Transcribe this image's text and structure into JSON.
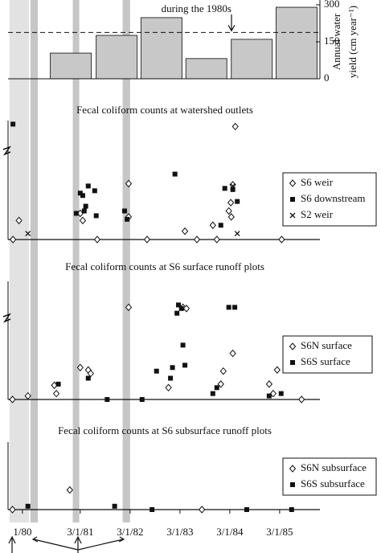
{
  "chart_data": [
    {
      "type": "bar",
      "annotation": "during the 1980s",
      "y_label": [
        "Annual water",
        "yield (cm year⁻¹)"
      ],
      "x": [
        1980.97,
        1981.89,
        1982.79,
        1983.69,
        1984.6,
        1985.5
      ],
      "values": [
        104,
        176,
        248,
        82,
        160,
        290
      ],
      "color": "#c8c8c8",
      "mean_line": 188,
      "ylim": [
        0,
        300
      ],
      "yticks": [
        0,
        150,
        300
      ]
    },
    {
      "type": "scatter",
      "title": "Fecal coliform counts at watershed outlets",
      "ylim": [
        0,
        100
      ],
      "series": [
        {
          "name": "S6 weir",
          "marker": "diamond",
          "x": [
            1979.81,
            1979.93,
            1981.16,
            1981.21,
            1982.13,
            1982.13,
            1983.26,
            1983.82,
            1983.9,
            1984.27,
            1984.22,
            1984.18,
            1984.14,
            1984.19,
            1981.5,
            1982.5,
            1983.5,
            1985.2
          ],
          "values": [
            0,
            16,
            22,
            16,
            47,
            19,
            7,
            12,
            0,
            95,
            46,
            31,
            24,
            19,
            0,
            0,
            0,
            0
          ]
        },
        {
          "name": "S6 downstream",
          "marker": "square",
          "x": [
            1979.81,
            1981.16,
            1981.21,
            1981.32,
            1981.45,
            1981.27,
            1981.08,
            1981.48,
            1981.24,
            1982.05,
            1982.1,
            1983.06,
            1984.06,
            1984.22,
            1983.98,
            1984.31
          ],
          "values": [
            97,
            39,
            37,
            45,
            41,
            28,
            22,
            20,
            24,
            24,
            17,
            55,
            43,
            42,
            12,
            32
          ]
        },
        {
          "name": "S2 weir",
          "marker": "x",
          "x": [
            1980.11,
            1984.22,
            1984.31
          ],
          "values": [
            5,
            45,
            5
          ]
        }
      ]
    },
    {
      "type": "scatter",
      "title": "Fecal coliform counts at S6 surface runoff plots",
      "ylim": [
        0,
        100
      ],
      "series": [
        {
          "name": "S6N surface",
          "marker": "diamond",
          "x": [
            1982.13,
            1981.16,
            1981.32,
            1981.37,
            1980.64,
            1980.68,
            1980.11,
            1983.22,
            1983.29,
            1984.22,
            1983.98,
            1984.03,
            1985.11,
            1984.95,
            1985.03,
            1982.93,
            1979.8,
            1985.6
          ],
          "values": [
            78,
            27,
            25,
            22,
            12,
            5,
            3,
            78,
            77,
            39,
            13,
            24,
            25,
            13,
            5,
            10,
            0,
            0
          ]
        },
        {
          "name": "S6S surface",
          "marker": "square",
          "x": [
            1983.13,
            1983.1,
            1983.19,
            1984.14,
            1984.26,
            1983.22,
            1983.26,
            1983.01,
            1982.97,
            1982.69,
            1981.32,
            1980.72,
            1983.9,
            1983.82,
            1984.95,
            1985.19,
            1981.7,
            1982.4
          ],
          "values": [
            80,
            73,
            77,
            78,
            78,
            46,
            29,
            27,
            18,
            24,
            18,
            13,
            10,
            5,
            3,
            5,
            0,
            0
          ]
        }
      ]
    },
    {
      "type": "scatter",
      "title": "Fecal coliform counts at S6 subsurface runoff plots",
      "ylim": [
        0,
        100
      ],
      "series": [
        {
          "name": "S6N subsurface",
          "marker": "diamond",
          "x": [
            1980.95,
            1979.8,
            1983.6
          ],
          "values": [
            29,
            0,
            0
          ]
        },
        {
          "name": "S6S subsurface",
          "marker": "square",
          "x": [
            1981.85,
            1980.11,
            1982.6,
            1984.5,
            1985.4
          ],
          "values": [
            5,
            5,
            0,
            0,
            0
          ]
        }
      ],
      "xlim": [
        1979.55,
        1986.0
      ],
      "xticks": [
        {
          "value": 1980.0,
          "label": "1/80"
        },
        {
          "value": 1981.16,
          "label": "3/1/81"
        },
        {
          "value": 1982.16,
          "label": "3/1/82"
        },
        {
          "value": 1983.16,
          "label": "3/1/83"
        },
        {
          "value": 1984.16,
          "label": "3/1/84"
        },
        {
          "value": 1985.16,
          "label": "3/1/85"
        }
      ],
      "shaded_periods": [
        {
          "range": [
            1979.74,
            1980.13
          ],
          "color": "#e2e2e2"
        },
        {
          "range": [
            1980.16,
            1980.31
          ],
          "color": "#c6c6c6"
        },
        {
          "range": [
            1981.01,
            1981.14
          ],
          "color": "#c6c6c6"
        },
        {
          "range": [
            1982.01,
            1982.16
          ],
          "color": "#c6c6c6"
        }
      ]
    }
  ]
}
